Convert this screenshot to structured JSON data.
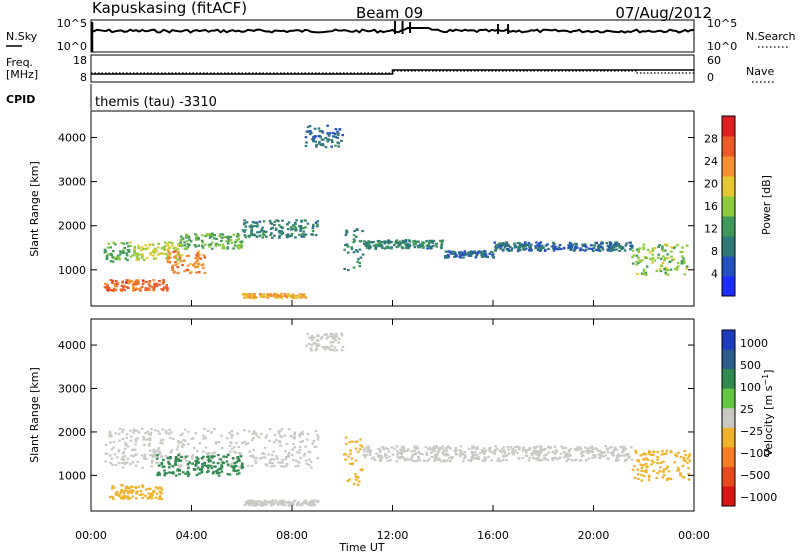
{
  "header": {
    "station": "Kapuskasing (fitACF)",
    "beam": "Beam 09",
    "date": "07/Aug/2012"
  },
  "param_panels": {
    "nsky_label": "N.Sky",
    "nsearch_label": "N.Search",
    "nsky_ticks": [
      "10^5",
      "10^0"
    ],
    "nsearch_ticks": [
      "10^5",
      "10^0"
    ],
    "freq_label_line1": "Freq.",
    "freq_label_line2": "[MHz]",
    "freq_ticks": [
      "18",
      "8"
    ],
    "nave_label": "Nave",
    "nave_ticks": [
      "60",
      "0"
    ],
    "cpid_label": "CPID",
    "cpid_text": "themis (tau) -3310"
  },
  "chart_data": [
    {
      "type": "heatmap",
      "name": "power",
      "ylabel": "Slant Range [km]",
      "ylim": [
        180,
        4600
      ],
      "yticks": [
        1000,
        2000,
        3000,
        4000
      ],
      "xlim": [
        0,
        24
      ],
      "colorbar": {
        "label": "Power [dB]",
        "ticks": [
          "4",
          "8",
          "12",
          "16",
          "20",
          "24",
          "28"
        ],
        "tick_values": [
          4,
          8,
          12,
          16,
          20,
          24,
          28
        ],
        "range": [
          0,
          32
        ],
        "colors": [
          "#1a2cff",
          "#2550c0",
          "#2f7a78",
          "#3f9a5a",
          "#8ccb3a",
          "#e8c830",
          "#f49030",
          "#ee5a25",
          "#e02020"
        ]
      },
      "echo_bands": [
        {
          "t": [
            0.5,
            1.5
          ],
          "r": [
            1200,
            1650
          ],
          "level": 12
        },
        {
          "t": [
            1.5,
            3.5
          ],
          "r": [
            1250,
            1650
          ],
          "level": 16
        },
        {
          "t": [
            3.5,
            6.0
          ],
          "r": [
            1500,
            1850
          ],
          "level": 12
        },
        {
          "t": [
            6.0,
            9.0
          ],
          "r": [
            1750,
            2150
          ],
          "level": 8
        },
        {
          "t": [
            0.5,
            3.0
          ],
          "r": [
            550,
            800
          ],
          "level": 24
        },
        {
          "t": [
            3.0,
            4.5
          ],
          "r": [
            950,
            1450
          ],
          "level": 22
        },
        {
          "t": [
            6.0,
            8.5
          ],
          "r": [
            380,
            480
          ],
          "level": 20
        },
        {
          "t": [
            10.0,
            10.8
          ],
          "r": [
            1000,
            2000
          ],
          "level": 8
        },
        {
          "t": [
            10.8,
            14.0
          ],
          "r": [
            1500,
            1700
          ],
          "level": 8
        },
        {
          "t": [
            14.0,
            16.0
          ],
          "r": [
            1300,
            1450
          ],
          "level": 6
        },
        {
          "t": [
            16.0,
            21.5
          ],
          "r": [
            1450,
            1650
          ],
          "level": 6
        },
        {
          "t": [
            21.5,
            23.8
          ],
          "r": [
            900,
            1600
          ],
          "level": 14
        },
        {
          "t": [
            8.5,
            10.0
          ],
          "r": [
            3800,
            4300
          ],
          "level": 6
        }
      ]
    },
    {
      "type": "heatmap",
      "name": "velocity",
      "ylabel": "Slant Range [km]",
      "xlabel": "Time UT",
      "ylim": [
        180,
        4600
      ],
      "yticks": [
        1000,
        2000,
        3000,
        4000
      ],
      "xlim": [
        0,
        24
      ],
      "xticks": [
        "00:00",
        "04:00",
        "08:00",
        "12:00",
        "16:00",
        "20:00",
        "00:00"
      ],
      "colorbar": {
        "label": "Velocity [m s^-1]",
        "ticks": [
          "1000",
          "500",
          "100",
          "25",
          "−25",
          "−100",
          "−500",
          "−1000"
        ],
        "colors": [
          "#1c3cc0",
          "#285d8c",
          "#2e8a4e",
          "#63c840",
          "#c9c9c4",
          "#f0b22a",
          "#f47e20",
          "#e84a1e",
          "#d81414"
        ]
      },
      "echo_bands": [
        {
          "t": [
            0.5,
            9.0
          ],
          "r": [
            1200,
            2100
          ],
          "level": "25"
        },
        {
          "t": [
            2.5,
            6.0
          ],
          "r": [
            1000,
            1500
          ],
          "level": "100"
        },
        {
          "t": [
            0.7,
            2.8
          ],
          "r": [
            480,
            800
          ],
          "level": "-100"
        },
        {
          "t": [
            6.0,
            9.0
          ],
          "r": [
            330,
            450
          ],
          "level": "25"
        },
        {
          "t": [
            10.0,
            10.8
          ],
          "r": [
            800,
            1900
          ],
          "level": "-100"
        },
        {
          "t": [
            10.8,
            21.5
          ],
          "r": [
            1350,
            1700
          ],
          "level": "25"
        },
        {
          "t": [
            21.5,
            23.8
          ],
          "r": [
            900,
            1600
          ],
          "level": "-100"
        },
        {
          "t": [
            8.5,
            10.0
          ],
          "r": [
            3900,
            4300
          ],
          "level": "25"
        }
      ]
    }
  ]
}
